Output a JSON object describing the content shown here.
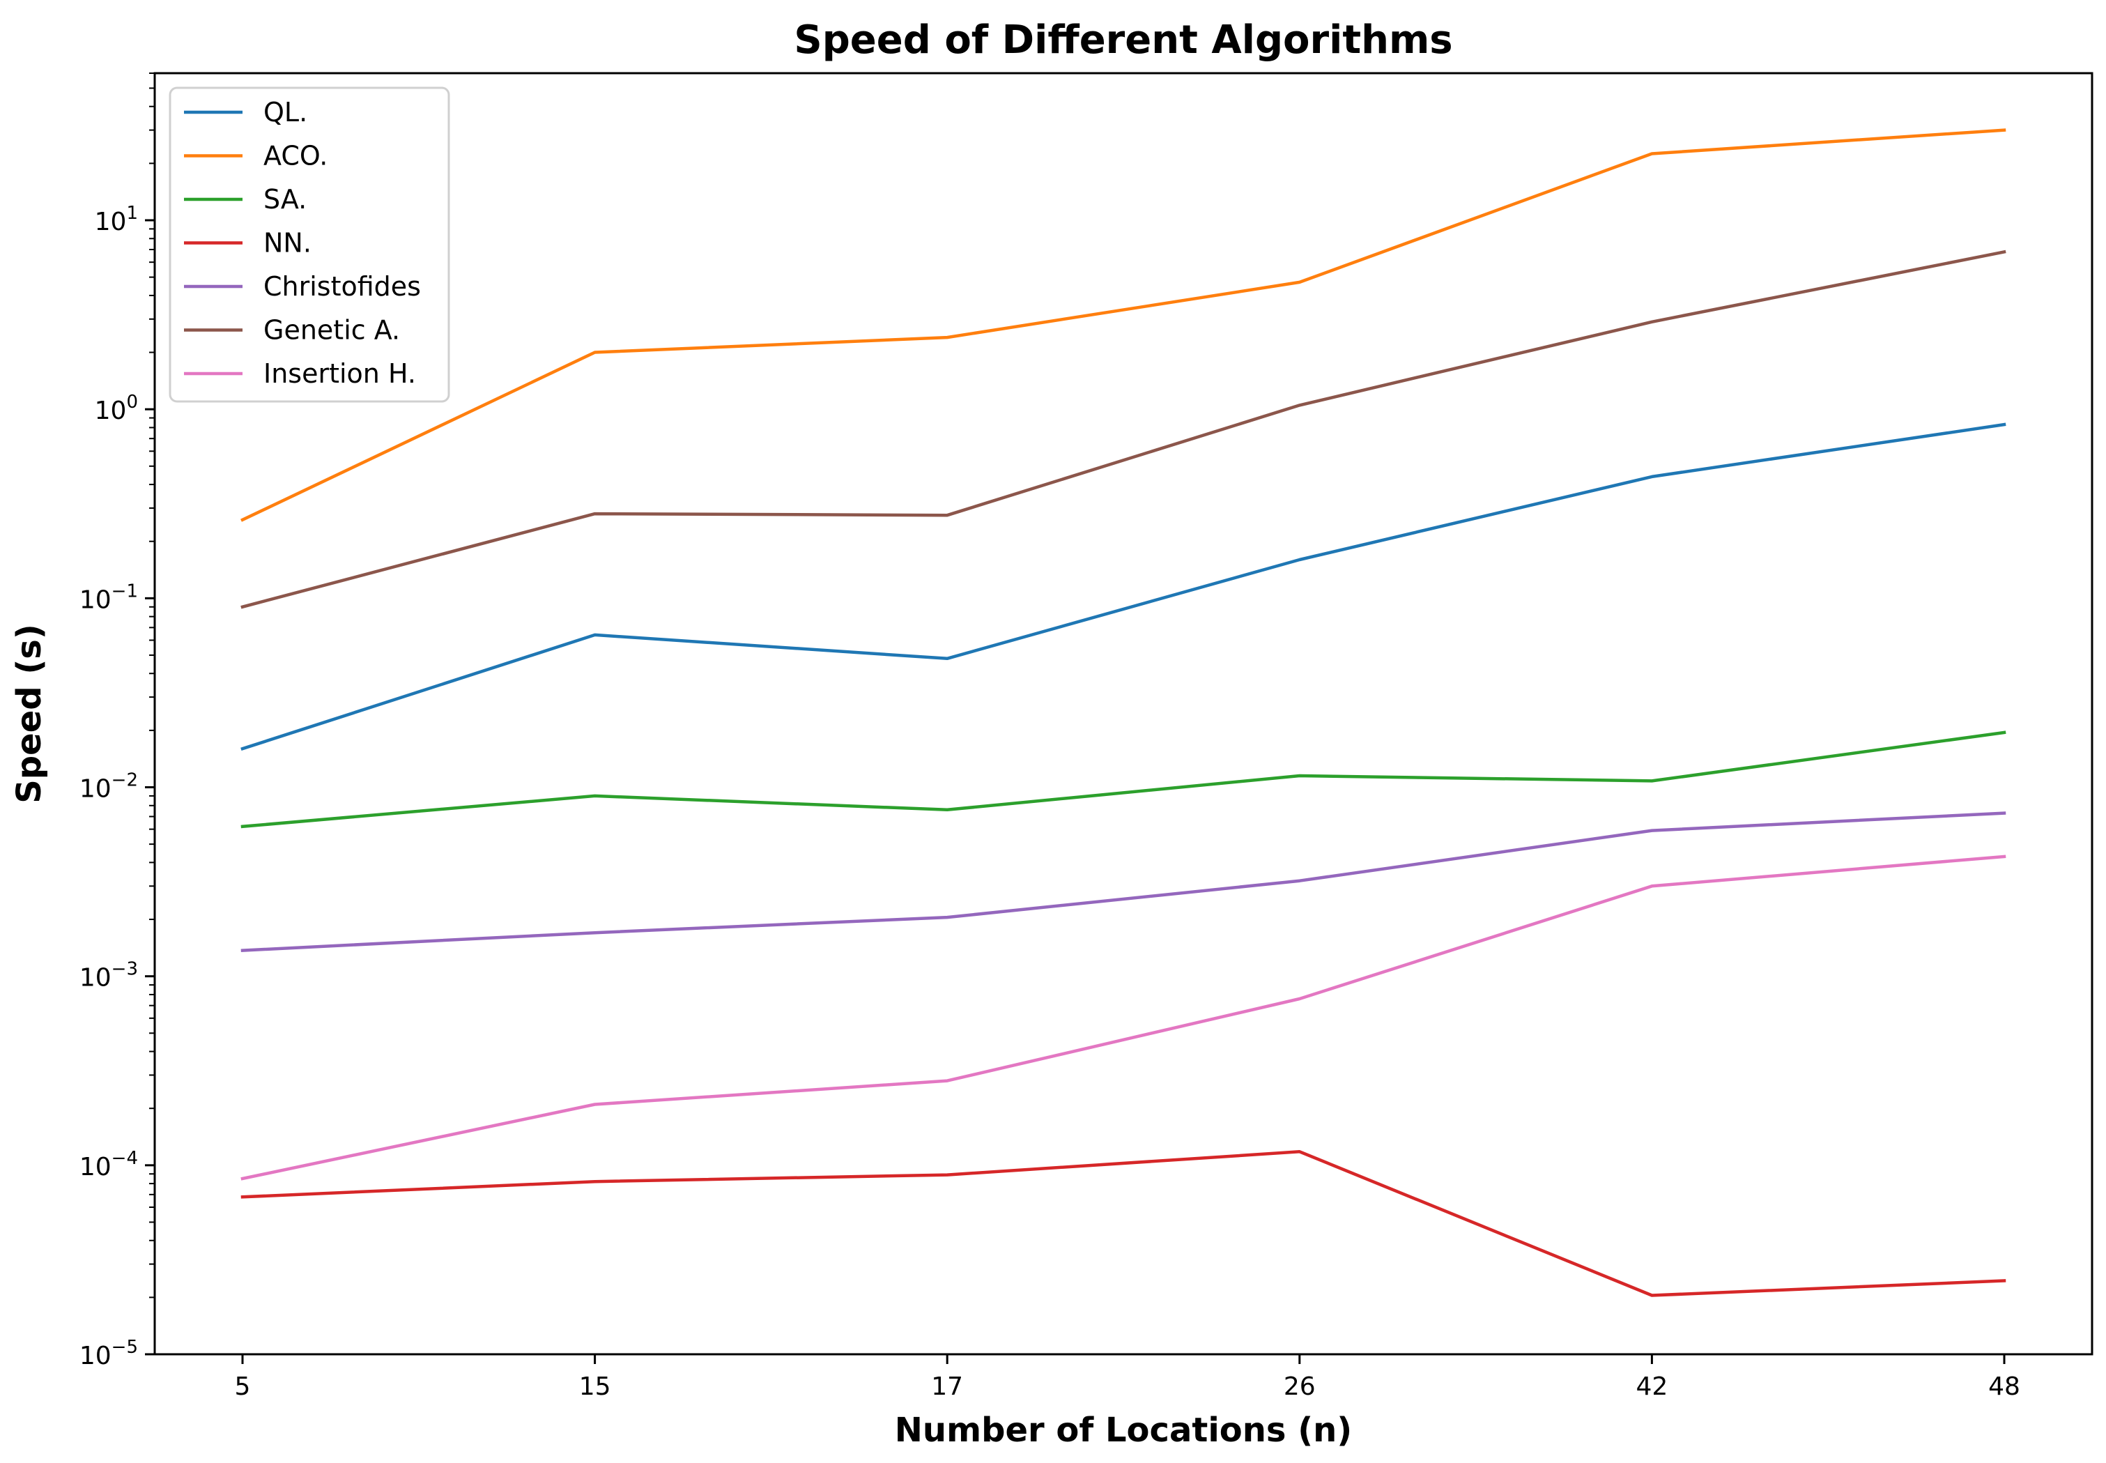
{
  "chart_data": {
    "type": "line",
    "title": "Speed of Different Algorithms",
    "xlabel": "Number of Locations (n)",
    "ylabel": "Speed (s)",
    "yscale": "log",
    "ylim": [
      1e-05,
      60
    ],
    "categories": [
      "5",
      "15",
      "17",
      "26",
      "42",
      "48"
    ],
    "y_ticks": [
      {
        "value": 1e-05,
        "base": "10",
        "exp": "−5"
      },
      {
        "value": 0.0001,
        "base": "10",
        "exp": "−4"
      },
      {
        "value": 0.001,
        "base": "10",
        "exp": "−3"
      },
      {
        "value": 0.01,
        "base": "10",
        "exp": "−2"
      },
      {
        "value": 0.1,
        "base": "10",
        "exp": "−1"
      },
      {
        "value": 1,
        "base": "10",
        "exp": "0"
      },
      {
        "value": 10,
        "base": "10",
        "exp": "1"
      }
    ],
    "legend_position": "top-left",
    "series": [
      {
        "name": "QL.",
        "color": "#1f77b4",
        "values": [
          0.016,
          0.064,
          0.048,
          0.16,
          0.44,
          0.83
        ]
      },
      {
        "name": "ACO.",
        "color": "#ff7f0e",
        "values": [
          0.26,
          2.0,
          2.4,
          4.7,
          22.5,
          30.0
        ]
      },
      {
        "name": "SA.",
        "color": "#2ca02c",
        "values": [
          0.0062,
          0.009,
          0.0076,
          0.0115,
          0.0108,
          0.0195
        ]
      },
      {
        "name": "NN.",
        "color": "#d62728",
        "values": [
          6.8e-05,
          8.2e-05,
          8.9e-05,
          0.000118,
          2.05e-05,
          2.45e-05
        ]
      },
      {
        "name": "Christofides",
        "color": "#9467bd",
        "values": [
          0.00137,
          0.0017,
          0.00205,
          0.0032,
          0.0059,
          0.0073
        ]
      },
      {
        "name": "Genetic A.",
        "color": "#8c564b",
        "values": [
          0.09,
          0.28,
          0.275,
          1.05,
          2.9,
          6.8
        ]
      },
      {
        "name": "Insertion H.",
        "color": "#e377c2",
        "values": [
          8.5e-05,
          0.00021,
          0.00028,
          0.00076,
          0.003,
          0.0043
        ]
      }
    ]
  }
}
